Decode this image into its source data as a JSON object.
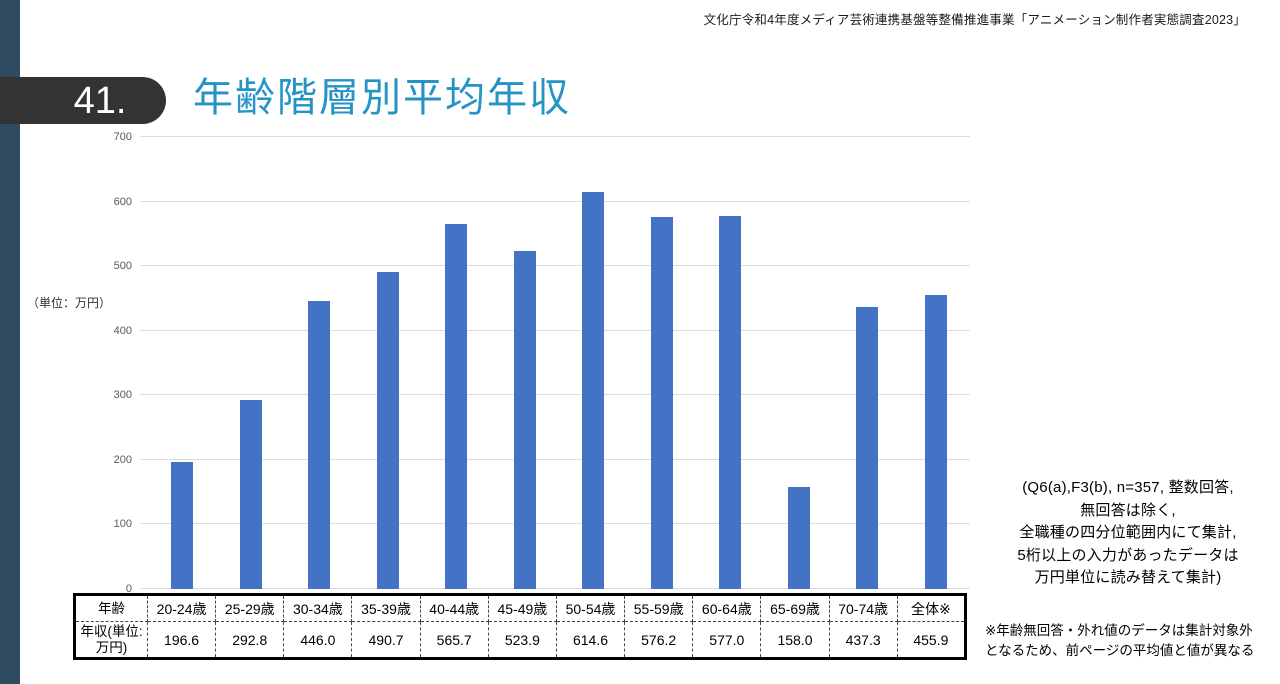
{
  "header": {
    "source_note": "文化庁令和4年度メディア芸術連携基盤等整備推進事業「アニメーション制作者実態調査2023」"
  },
  "slide": {
    "number": "41.",
    "title": "年齢階層別平均年収"
  },
  "chart_data": {
    "type": "bar",
    "title": "年齢階層別平均年収",
    "unit_label": "（単位：万円）",
    "categories": [
      "20-24歳",
      "25-29歳",
      "30-34歳",
      "35-39歳",
      "40-44歳",
      "45-49歳",
      "50-54歳",
      "55-59歳",
      "60-64歳",
      "65-69歳",
      "70-74歳",
      "全体※"
    ],
    "values": [
      196.6,
      292.8,
      446.0,
      490.7,
      565.7,
      523.9,
      614.6,
      576.2,
      577.0,
      158.0,
      437.3,
      455.9
    ],
    "ylim": [
      0,
      700
    ],
    "yticks": [
      0,
      100,
      200,
      300,
      400,
      500,
      600,
      700
    ],
    "grid": true,
    "legend_position": "none",
    "bar_color": "#4472C4",
    "gridline_color": "#DCDCDC"
  },
  "table": {
    "age_row_header": "年齢",
    "income_row_header": "年収(単位:万円)",
    "columns": [
      "20-24歳",
      "25-29歳",
      "30-34歳",
      "35-39歳",
      "40-44歳",
      "45-49歳",
      "50-54歳",
      "55-59歳",
      "60-64歳",
      "65-69歳",
      "70-74歳",
      "全体※"
    ],
    "values": [
      "196.6",
      "292.8",
      "446.0",
      "490.7",
      "565.7",
      "523.9",
      "614.6",
      "576.2",
      "577.0",
      "158.0",
      "437.3",
      "455.9"
    ]
  },
  "notes": {
    "method_note": "(Q6(a),F3(b), n=357, 整数回答,\n無回答は除く,\n全職種の四分位範囲内にて集計,\n5桁以上の入力があったデータは\n万円単位に読み替えて集計)",
    "footnote": "※年齢無回答・外れ値のデータは集計対象外\nとなるため、前ページの平均値と値が異なる"
  },
  "colors": {
    "title_accent": "#2593C5",
    "left_stripe": "#2E4B61",
    "badge_background": "#333333",
    "bar": "#4472C4"
  }
}
